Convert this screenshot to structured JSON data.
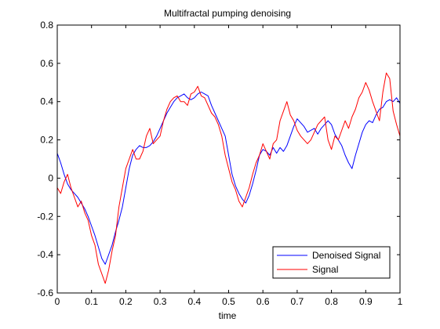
{
  "chart_data": {
    "type": "line",
    "title": "Multifractal pumping denoising",
    "xlabel": "time",
    "ylabel": "",
    "xlim": [
      0,
      1
    ],
    "ylim": [
      -0.6,
      0.8
    ],
    "x_ticks": [
      0,
      0.1,
      0.2,
      0.3,
      0.4,
      0.5,
      0.6,
      0.7,
      0.8,
      0.9,
      1
    ],
    "x_tick_labels": [
      "0",
      "0.1",
      "0.2",
      "0.3",
      "0.4",
      "0.5",
      "0.6",
      "0.7",
      "0.8",
      "0.9",
      "1"
    ],
    "y_ticks": [
      -0.6,
      -0.4,
      -0.2,
      0,
      0.2,
      0.4,
      0.6,
      0.8
    ],
    "y_tick_labels": [
      "-0.6",
      "-0.4",
      "-0.2",
      "0",
      "0.2",
      "0.4",
      "0.6",
      "0.8"
    ],
    "grid": false,
    "legend_position": "bottom-right",
    "series": [
      {
        "name": "Denoised Signal",
        "color": "#0000ff",
        "x": [
          0,
          0.01,
          0.02,
          0.03,
          0.04,
          0.05,
          0.06,
          0.07,
          0.08,
          0.09,
          0.1,
          0.11,
          0.12,
          0.13,
          0.14,
          0.15,
          0.16,
          0.17,
          0.18,
          0.19,
          0.2,
          0.21,
          0.22,
          0.23,
          0.24,
          0.25,
          0.26,
          0.27,
          0.28,
          0.29,
          0.3,
          0.31,
          0.32,
          0.33,
          0.34,
          0.35,
          0.36,
          0.37,
          0.38,
          0.39,
          0.4,
          0.41,
          0.42,
          0.43,
          0.44,
          0.45,
          0.46,
          0.47,
          0.48,
          0.49,
          0.5,
          0.51,
          0.52,
          0.53,
          0.54,
          0.55,
          0.56,
          0.57,
          0.58,
          0.59,
          0.6,
          0.61,
          0.62,
          0.63,
          0.64,
          0.65,
          0.66,
          0.67,
          0.68,
          0.69,
          0.7,
          0.71,
          0.72,
          0.73,
          0.74,
          0.75,
          0.76,
          0.77,
          0.78,
          0.79,
          0.8,
          0.81,
          0.82,
          0.83,
          0.84,
          0.85,
          0.86,
          0.87,
          0.88,
          0.89,
          0.9,
          0.91,
          0.92,
          0.93,
          0.94,
          0.95,
          0.96,
          0.97,
          0.98,
          0.99,
          1
        ],
        "y": [
          0.13,
          0.08,
          0.02,
          -0.03,
          -0.06,
          -0.08,
          -0.1,
          -0.13,
          -0.16,
          -0.2,
          -0.25,
          -0.3,
          -0.36,
          -0.42,
          -0.45,
          -0.4,
          -0.35,
          -0.28,
          -0.22,
          -0.15,
          -0.05,
          0.05,
          0.12,
          0.15,
          0.17,
          0.16,
          0.16,
          0.17,
          0.19,
          0.22,
          0.26,
          0.3,
          0.34,
          0.37,
          0.4,
          0.42,
          0.43,
          0.44,
          0.42,
          0.41,
          0.42,
          0.44,
          0.45,
          0.44,
          0.43,
          0.38,
          0.34,
          0.3,
          0.26,
          0.22,
          0.12,
          0.02,
          -0.04,
          -0.08,
          -0.11,
          -0.13,
          -0.09,
          -0.03,
          0.04,
          0.12,
          0.15,
          0.14,
          0.12,
          0.16,
          0.13,
          0.16,
          0.14,
          0.17,
          0.22,
          0.27,
          0.31,
          0.29,
          0.27,
          0.24,
          0.25,
          0.26,
          0.23,
          0.26,
          0.28,
          0.3,
          0.28,
          0.23,
          0.2,
          0.17,
          0.12,
          0.08,
          0.05,
          0.12,
          0.18,
          0.24,
          0.28,
          0.3,
          0.29,
          0.33,
          0.36,
          0.37,
          0.4,
          0.41,
          0.4,
          0.42,
          0.39
        ]
      },
      {
        "name": "Signal",
        "color": "#ff0000",
        "x": [
          0,
          0.01,
          0.02,
          0.03,
          0.04,
          0.05,
          0.06,
          0.07,
          0.08,
          0.09,
          0.1,
          0.11,
          0.12,
          0.13,
          0.14,
          0.15,
          0.16,
          0.17,
          0.18,
          0.19,
          0.2,
          0.21,
          0.22,
          0.23,
          0.24,
          0.25,
          0.26,
          0.27,
          0.28,
          0.29,
          0.3,
          0.31,
          0.32,
          0.33,
          0.34,
          0.35,
          0.36,
          0.37,
          0.38,
          0.39,
          0.4,
          0.41,
          0.42,
          0.43,
          0.44,
          0.45,
          0.46,
          0.47,
          0.48,
          0.49,
          0.5,
          0.51,
          0.52,
          0.53,
          0.54,
          0.55,
          0.56,
          0.57,
          0.58,
          0.59,
          0.6,
          0.61,
          0.62,
          0.63,
          0.64,
          0.65,
          0.66,
          0.67,
          0.68,
          0.69,
          0.7,
          0.71,
          0.72,
          0.73,
          0.74,
          0.75,
          0.76,
          0.77,
          0.78,
          0.79,
          0.8,
          0.81,
          0.82,
          0.83,
          0.84,
          0.85,
          0.86,
          0.87,
          0.88,
          0.89,
          0.9,
          0.91,
          0.92,
          0.93,
          0.94,
          0.95,
          0.96,
          0.97,
          0.98,
          0.99,
          1
        ],
        "y": [
          -0.05,
          -0.08,
          -0.02,
          0.02,
          -0.05,
          -0.1,
          -0.15,
          -0.12,
          -0.18,
          -0.22,
          -0.3,
          -0.35,
          -0.45,
          -0.5,
          -0.55,
          -0.48,
          -0.38,
          -0.3,
          -0.15,
          -0.05,
          0.05,
          0.1,
          0.15,
          0.1,
          0.1,
          0.14,
          0.22,
          0.26,
          0.18,
          0.2,
          0.22,
          0.3,
          0.36,
          0.4,
          0.42,
          0.43,
          0.4,
          0.4,
          0.38,
          0.44,
          0.45,
          0.48,
          0.43,
          0.42,
          0.38,
          0.34,
          0.32,
          0.28,
          0.22,
          0.12,
          0.05,
          -0.02,
          -0.06,
          -0.12,
          -0.15,
          -0.1,
          -0.05,
          0.02,
          0.08,
          0.12,
          0.18,
          0.14,
          0.1,
          0.18,
          0.2,
          0.3,
          0.35,
          0.4,
          0.33,
          0.3,
          0.25,
          0.22,
          0.2,
          0.18,
          0.2,
          0.24,
          0.28,
          0.3,
          0.32,
          0.2,
          0.15,
          0.22,
          0.2,
          0.25,
          0.3,
          0.26,
          0.32,
          0.36,
          0.42,
          0.45,
          0.5,
          0.46,
          0.4,
          0.35,
          0.3,
          0.45,
          0.55,
          0.52,
          0.35,
          0.28,
          0.22
        ]
      }
    ]
  }
}
